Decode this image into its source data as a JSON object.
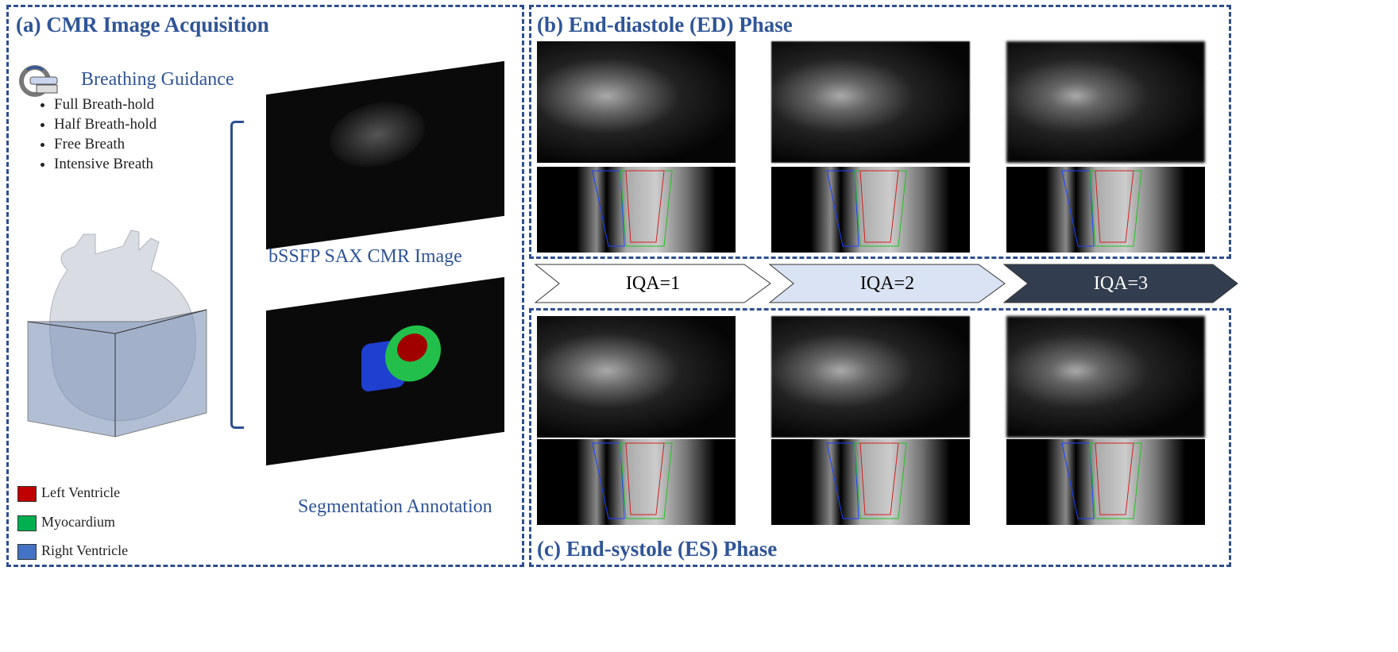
{
  "panel_a": {
    "title": "(a) CMR Image Acquisition",
    "guidance_title": "Breathing Guidance",
    "guidance_items": [
      "Full Breath-hold",
      "Half Breath-hold",
      "Free Breath",
      "Intensive Breath"
    ],
    "image_label": "bSSFP SAX CMR Image",
    "annotation_label": "Segmentation Annotation",
    "legend": [
      {
        "label": "Left Ventricle",
        "color": "#C00000"
      },
      {
        "label": "Myocardium",
        "color": "#00B050"
      },
      {
        "label": "Right Ventricle",
        "color": "#4472C4"
      }
    ]
  },
  "panel_b": {
    "title": "(b) End-diastole (ED) Phase"
  },
  "panel_c": {
    "title": "(c) End-systole (ES) Phase"
  },
  "iqa_arrows": [
    {
      "label": "IQA=1",
      "fill": "#FFFFFF",
      "text": "#222222"
    },
    {
      "label": "IQA=2",
      "fill": "#DAE3F3",
      "text": "#222222"
    },
    {
      "label": "IQA=3",
      "fill": "#323E50",
      "text": "#FFFFFF"
    }
  ],
  "colors": {
    "accent": "#2F5597",
    "border": "#2E4F8F"
  }
}
